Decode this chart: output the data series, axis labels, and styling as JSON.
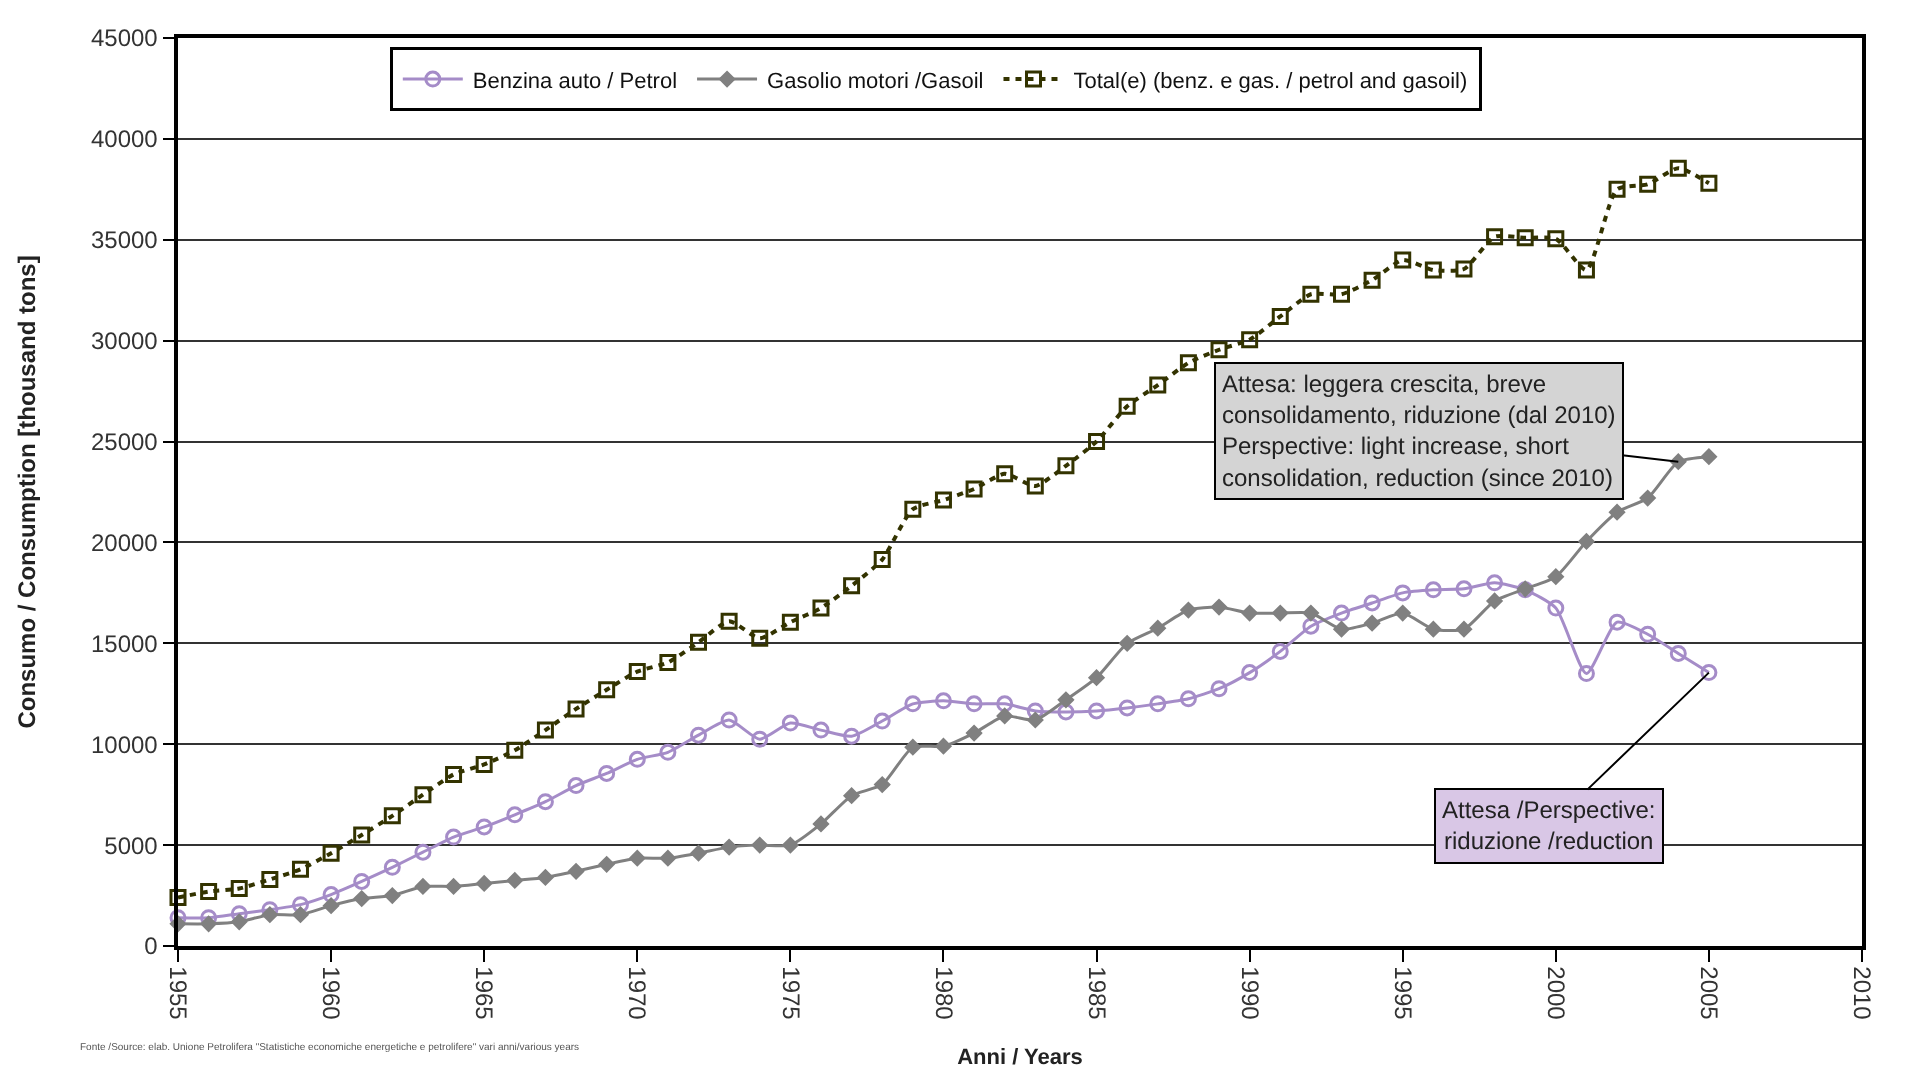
{
  "chart_data": {
    "type": "line",
    "xlabel": "Anni / Years",
    "ylabel": "Consumo / Consumption [thousand tons]",
    "x": [
      1955,
      1956,
      1957,
      1958,
      1959,
      1960,
      1961,
      1962,
      1963,
      1964,
      1965,
      1966,
      1967,
      1968,
      1969,
      1970,
      1971,
      1972,
      1973,
      1974,
      1975,
      1976,
      1977,
      1978,
      1979,
      1980,
      1981,
      1982,
      1983,
      1984,
      1985,
      1986,
      1987,
      1988,
      1989,
      1990,
      1991,
      1992,
      1993,
      1994,
      1995,
      1996,
      1997,
      1998,
      1999,
      2000,
      2001,
      2002,
      2003,
      2004,
      2005
    ],
    "series": [
      {
        "name": "Benzina auto / Petrol",
        "color": "#a58cc8",
        "marker": "circle",
        "line_style": "solid",
        "values": [
          1400,
          1400,
          1600,
          1800,
          2050,
          2550,
          3200,
          3900,
          4650,
          5400,
          5900,
          6500,
          7150,
          7950,
          8550,
          9250,
          9600,
          10450,
          11200,
          10250,
          11050,
          10700,
          10400,
          11150,
          12000,
          12150,
          12000,
          12000,
          11650,
          11600,
          11650,
          11800,
          12000,
          12250,
          12750,
          13550,
          14600,
          15850,
          16500,
          17000,
          17500,
          17650,
          17700,
          18000,
          17650,
          16750,
          13500,
          16050,
          15450,
          14500,
          13550
        ]
      },
      {
        "name": "Gasolio motori /Gasoil",
        "color": "#808080",
        "marker": "diamond",
        "line_style": "solid",
        "values": [
          1100,
          1100,
          1200,
          1550,
          1550,
          2000,
          2350,
          2500,
          2950,
          2950,
          3100,
          3250,
          3400,
          3700,
          4050,
          4350,
          4350,
          4600,
          4900,
          5000,
          5000,
          6050,
          7450,
          8000,
          9850,
          9900,
          10550,
          11400,
          11200,
          12200,
          13300,
          15000,
          15750,
          16650,
          16800,
          16500,
          16500,
          16500,
          15700,
          16000,
          16500,
          15700,
          15700,
          17100,
          17700,
          18300,
          20050,
          21500,
          22200,
          24000,
          24250
        ]
      },
      {
        "name": "Total(e) (benz. e gas. / petrol and gasoil)",
        "color": "#333300",
        "marker": "square",
        "line_style": "dotted",
        "values": [
          2400,
          2700,
          2850,
          3300,
          3800,
          4600,
          5500,
          6450,
          7500,
          8500,
          9000,
          9700,
          10700,
          11750,
          12700,
          13600,
          14050,
          15050,
          16100,
          15250,
          16050,
          16750,
          17850,
          19150,
          21650,
          22100,
          22650,
          23400,
          22800,
          23800,
          25000,
          26750,
          27800,
          28900,
          29550,
          30050,
          31200,
          32300,
          32300,
          33000,
          34000,
          33500,
          33550,
          35150,
          35100,
          35050,
          33500,
          37500,
          37750,
          38550,
          37800
        ]
      }
    ],
    "xlim": [
      1955,
      2010
    ],
    "xticks": [
      1955,
      1960,
      1965,
      1970,
      1975,
      1980,
      1985,
      1990,
      1995,
      2000,
      2005,
      2010
    ],
    "ylim": [
      0,
      45000
    ],
    "yticks": [
      0,
      5000,
      10000,
      15000,
      20000,
      25000,
      30000,
      35000,
      40000,
      45000
    ],
    "grid": "y",
    "legend": "top",
    "annotations": [
      {
        "text": "Attesa: leggera crescita, breve\nconsolidamento, riduzione (dal 2010)\nPerspective: light increase, short\nconsolidation, reduction (since 2010)",
        "x": 2004,
        "y": 24000
      },
      {
        "text": "Attesa /Perspective:\nriduzione /reduction",
        "x": 2005,
        "y": 13550
      },
      "Fonte /Source: elab. Unione Petrolifera \"Statistiche economiche energetiche e petrolifere\" vari anni/various years"
    ]
  }
}
